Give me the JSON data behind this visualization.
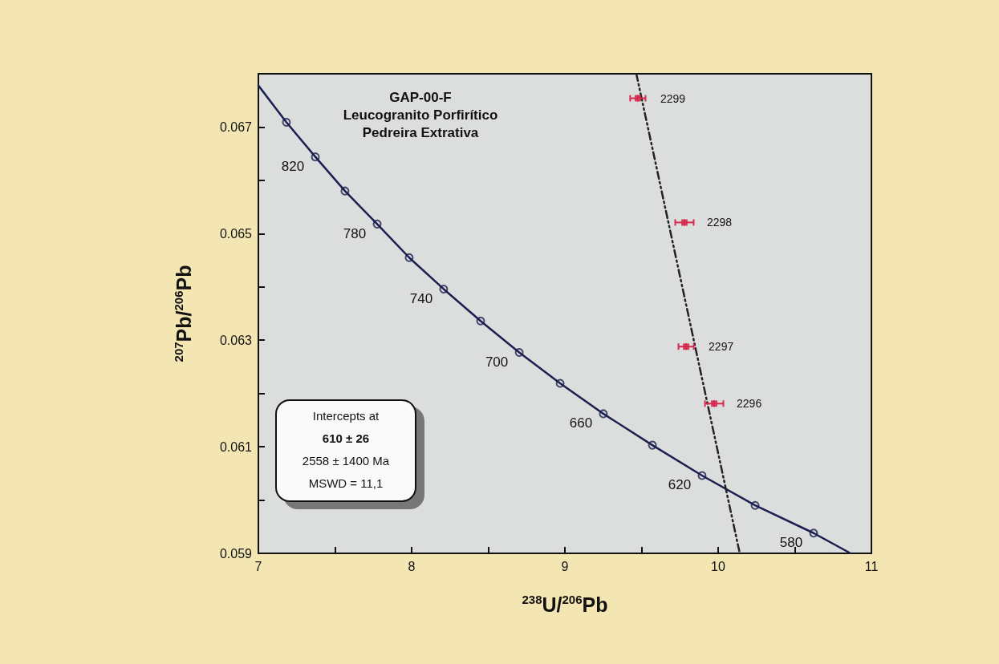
{
  "chart_data": {
    "type": "scatter",
    "title": "GAP-00-F",
    "subtitle": "Leucogranito Porfirítico\nPedreira Extrativa",
    "xlabel": "$^{238}$U/$^{206}$Pb",
    "ylabel": "$^{207}$Pb/$^{206}$Pb",
    "xlim": [
      7,
      11
    ],
    "ylim": [
      0.059,
      0.068
    ],
    "xticks": [
      7,
      {
        "value": 7.5,
        "label": null
      },
      8,
      {
        "value": 8.5,
        "label": null
      },
      9,
      {
        "value": 9.5,
        "label": null
      },
      10,
      {
        "value": 10.5,
        "label": null
      },
      11
    ],
    "yticks": [
      0.059,
      {
        "value": 0.06,
        "label": null
      },
      0.061,
      {
        "value": 0.062,
        "label": null
      },
      0.063,
      {
        "value": 0.064,
        "label": null
      },
      0.065,
      {
        "value": 0.066,
        "label": null
      },
      0.067
    ],
    "grid": false,
    "annotations": [
      "Intercepts at",
      "610 ± 26",
      "2558 ± 1400 Ma",
      "MSWD = 11,1",
      {
        "text": "820",
        "x": 7.372,
        "y": 0.06644
      },
      {
        "text": "780",
        "x": 7.775,
        "y": 0.06518
      },
      {
        "text": "740",
        "x": 8.209,
        "y": 0.06396
      },
      {
        "text": "700",
        "x": 8.702,
        "y": 0.06277
      },
      {
        "text": "660",
        "x": 9.251,
        "y": 0.06162
      },
      {
        "text": "620",
        "x": 9.895,
        "y": 0.06046
      },
      {
        "text": "580",
        "x": 10.623,
        "y": 0.05938
      },
      {
        "text": "2299",
        "x": 9.476,
        "y": 0.06754
      },
      {
        "text": "2298",
        "x": 9.78,
        "y": 0.06521
      },
      {
        "text": "2297",
        "x": 9.791,
        "y": 0.06288
      },
      {
        "text": "2296",
        "x": 9.974,
        "y": 0.06181
      }
    ],
    "series": [
      {
        "type": "line",
        "marker": "none",
        "color": "#1c2050",
        "x": [
          7.0,
          7.183,
          7.372,
          7.565,
          7.775,
          7.984,
          8.209,
          8.45,
          8.702,
          8.969,
          9.251,
          9.571,
          9.895,
          10.241,
          10.623,
          10.864
        ],
        "values": [
          0.06778,
          0.06709,
          0.06644,
          0.0658,
          0.06518,
          0.06455,
          0.06396,
          0.06336,
          0.06277,
          0.06219,
          0.06162,
          0.06103,
          0.06046,
          0.0599,
          0.05938,
          0.059
        ]
      },
      {
        "type": "scatter",
        "marker": "circle",
        "color": "#1c2050",
        "x": [
          7.183,
          7.372,
          7.565,
          7.775,
          7.984,
          8.209,
          8.45,
          8.702,
          8.969,
          9.251,
          9.571,
          9.895,
          10.241,
          10.623
        ],
        "values": [
          0.06709,
          0.06644,
          0.0658,
          0.06518,
          0.06455,
          0.06396,
          0.06336,
          0.06277,
          0.06219,
          0.06162,
          0.06103,
          0.06046,
          0.0599,
          0.05938
        ]
      },
      {
        "type": "line",
        "marker": "none",
        "line_style": "dashed",
        "color": "#222222",
        "x": [
          9.466,
          10.141
        ],
        "values": [
          0.068,
          0.059
        ]
      },
      {
        "type": "scatter",
        "marker": "square",
        "color": "#d42a4e",
        "x": [
          9.476,
          9.78,
          9.791,
          9.974
        ],
        "values": [
          0.06754,
          0.06521,
          0.06288,
          0.06181
        ],
        "xerrors": [
          0.05,
          0.06,
          0.05,
          0.06
        ],
        "errors": [
          6e-05,
          6e-05,
          6e-05,
          6e-05
        ]
      }
    ]
  }
}
